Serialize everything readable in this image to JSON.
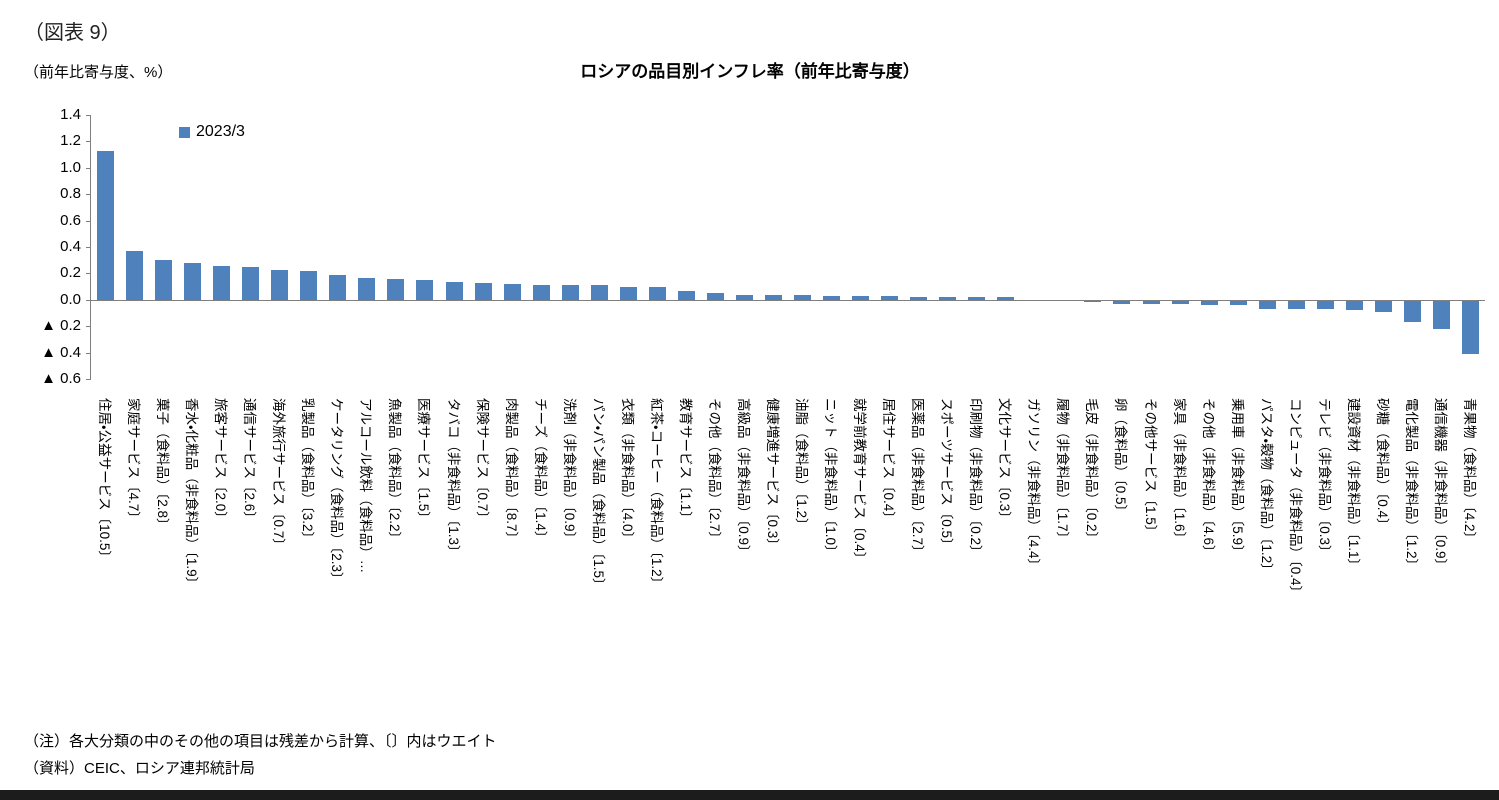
{
  "figure_label": "（図表 9）",
  "axis_unit_label": "（前年比寄与度、%）",
  "title": "ロシアの品目別インフレ率（前年比寄与度）",
  "legend": {
    "label": "2023/3",
    "color": "#4F81BD"
  },
  "notes": [
    "（注）各大分類の中のその他の項目は残差から計算、〔〕内はウエイト",
    "（資料）CEIC、ロシア連邦統計局"
  ],
  "chart_data": {
    "type": "bar",
    "title": "ロシアの品目別インフレ率（前年比寄与度）",
    "xlabel": "",
    "ylabel": "（前年比寄与度、%）",
    "ylim": [
      -0.6,
      1.4
    ],
    "ytick_step": 0.2,
    "negative_tick_prefix": "▲ ",
    "grid": false,
    "legend_position": "top-left-inside",
    "series_name": "2023/3",
    "bar_color": "#4F81BD",
    "categories": [
      "住居・公益サービス〔10.5〕",
      "家庭サービス〔4.7〕",
      "菓子（食料品）〔2.8〕",
      "香水・化粧品（非食料品）〔1.9〕",
      "旅客サービス〔2.0〕",
      "通信サービス〔2.6〕",
      "海外旅行サービス〔0.7〕",
      "乳製品（食料品）〔3.2〕",
      "ケータリング（食料品）〔2.3〕",
      "アルコール飲料（食料品）…",
      "魚製品（食料品）〔2.2〕",
      "医療サービス〔1.5〕",
      "タバコ（非食料品）〔1.3〕",
      "保険サービス〔0.7〕",
      "肉製品（食料品）〔8.7〕",
      "チーズ（食料品）〔1.4〕",
      "洗剤（非食料品）〔0.9〕",
      "パン・パン製品（食料品）〔1.5〕",
      "衣類（非食料品）〔4.0〕",
      "紅茶・コーヒー（食料品）〔1.2〕",
      "教育サービス〔1.1〕",
      "その他（食料品）〔2.7〕",
      "高級品（非食料品）〔0.9〕",
      "健康増進サービス〔0.3〕",
      "油脂（食料品）〔1.2〕",
      "ニット（非食料品）〔1.0〕",
      "就学前教育サービス〔0.4〕",
      "居住サービス〔0.4〕",
      "医薬品（非食料品）〔2.7〕",
      "スポーツサービス〔0.5〕",
      "印刷物（非食料品）〔0.2〕",
      "文化サービス〔0.3〕",
      "ガソリン（非食料品）〔4.4〕",
      "履物（非食料品）〔1.7〕",
      "毛皮（非食料品）〔0.2〕",
      "卵（食料品）〔0.5〕",
      "その他サービス〔1.5〕",
      "家具（非食料品）〔1.6〕",
      "その他（非食料品）〔4.6〕",
      "乗用車（非食料品）〔5.9〕",
      "パスタ・穀物（食料品）〔1.2〕",
      "コンピュータ（非食料品）〔0.4〕",
      "テレビ（非食料品）〔0.3〕",
      "建設資材（非食料品）〔1.1〕",
      "砂糖（食料品）〔0.4〕",
      "電化製品（非食料品）〔1.2〕",
      "通信機器（非食料品）〔0.9〕",
      "青果物（食料品）〔4.2〕"
    ],
    "values": [
      1.13,
      0.37,
      0.3,
      0.28,
      0.26,
      0.25,
      0.23,
      0.22,
      0.19,
      0.17,
      0.16,
      0.15,
      0.14,
      0.13,
      0.12,
      0.11,
      0.11,
      0.11,
      0.1,
      0.1,
      0.07,
      0.05,
      0.04,
      0.04,
      0.04,
      0.03,
      0.03,
      0.03,
      0.02,
      0.02,
      0.02,
      0.02,
      0.0,
      0.0,
      -0.01,
      -0.02,
      -0.02,
      -0.02,
      -0.03,
      -0.03,
      -0.06,
      -0.06,
      -0.06,
      -0.07,
      -0.08,
      -0.16,
      -0.21,
      -0.4
    ]
  }
}
